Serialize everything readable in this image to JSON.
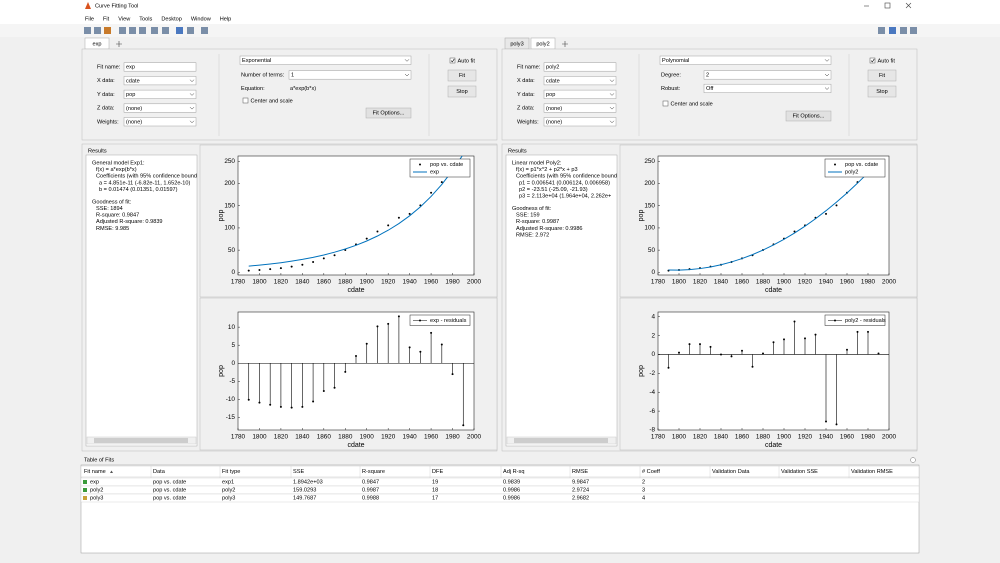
{
  "window": {
    "title": "Curve Fitting Tool",
    "menu": [
      "File",
      "Fit",
      "View",
      "Tools",
      "Desktop",
      "Window",
      "Help"
    ]
  },
  "left": {
    "tabs": [
      "exp"
    ],
    "fit_name_label": "Fit name:",
    "fit_name": "exp",
    "x_data_label": "X data:",
    "x_data": "cdate",
    "y_data_label": "Y data:",
    "y_data": "pop",
    "z_data_label": "Z data:",
    "z_data": "(none)",
    "weights_label": "Weights:",
    "weights": "(none)",
    "fit_type": "Exponential",
    "terms_label": "Number of terms:",
    "terms": "1",
    "equation_label": "Equation:",
    "equation": "a*exp(b*x)",
    "center_scale": "Center and scale",
    "fit_options": "Fit Options...",
    "auto_fit": "Auto fit",
    "fit": "Fit",
    "stop": "Stop",
    "results_title": "Results",
    "results": {
      "model": [
        "General model Exp1:",
        "f(x) = a*exp(b*x)",
        "Coefficients (with 95% confidence bound",
        "a =  4.851e-11  (-6.82e-11, 1.652e-10)",
        "b =    0.01474  (0.01351, 0.01597)"
      ],
      "goodness": [
        "Goodness of fit:",
        "SSE: 1894",
        "R-square: 0.9847",
        "Adjusted R-square: 0.9839",
        "RMSE: 9.985"
      ]
    }
  },
  "right": {
    "tabs": [
      "poly3",
      "poly2"
    ],
    "fit_name_label": "Fit name:",
    "fit_name": "poly2",
    "x_data_label": "X data:",
    "x_data": "cdate",
    "y_data_label": "Y data:",
    "y_data": "pop",
    "z_data_label": "Z data:",
    "z_data": "(none)",
    "weights_label": "Weights:",
    "weights": "(none)",
    "fit_type": "Polynomial",
    "degree_label": "Degree:",
    "degree": "2",
    "robust_label": "Robust:",
    "robust": "Off",
    "center_scale": "Center and scale",
    "fit_options": "Fit Options...",
    "auto_fit": "Auto fit",
    "fit": "Fit",
    "stop": "Stop",
    "results_title": "Results",
    "results": {
      "model": [
        "Linear model Poly2:",
        "f(x) = p1*x^2 + p2*x + p3",
        "Coefficients (with 95% confidence bound",
        "p1 =   0.006541  (0.006124, 0.006958)",
        "p2 =     -23.51  (-25.09, -21.93)",
        "p3 =  2.113e+04  (1.964e+04, 2.262e+"
      ],
      "goodness": [
        "Goodness of fit:",
        "SSE: 159",
        "R-square: 0.9987",
        "Adjusted R-square: 0.9986",
        "RMSE: 2.972"
      ]
    }
  },
  "chart_data": [
    {
      "type": "scatter",
      "xlabel": "cdate",
      "ylabel": "pop",
      "x": [
        1790,
        1800,
        1810,
        1820,
        1830,
        1840,
        1850,
        1860,
        1870,
        1880,
        1890,
        1900,
        1910,
        1920,
        1930,
        1940,
        1950,
        1960,
        1970,
        1980,
        1990
      ],
      "xlim": [
        1780,
        2000
      ],
      "xticks": [
        1780,
        1800,
        1820,
        1840,
        1860,
        1880,
        1900,
        1920,
        1940,
        1960,
        1980,
        2000
      ],
      "ylim": [
        -6,
        262
      ],
      "yticks": [
        0,
        50,
        100,
        150,
        200,
        250
      ],
      "legend": "northeast",
      "series": [
        {
          "name": "pop vs. cdate",
          "color": "#000000",
          "style": "markers",
          "values": [
            3.9,
            5.3,
            7.2,
            9.6,
            12.9,
            17.1,
            23.2,
            31.4,
            38.6,
            50.2,
            62.9,
            76,
            92,
            105.7,
            122.8,
            131.7,
            150.7,
            179.3,
            203.2,
            226.5,
            248.7
          ]
        },
        {
          "name": "exp",
          "color": "#0072bd",
          "style": "line",
          "values": [
            14.0,
            16.2,
            18.7,
            21.7,
            25.2,
            29.2,
            33.8,
            39.1,
            45.4,
            52.6,
            60.9,
            70.6,
            81.8,
            94.8,
            109.8,
            127.3,
            147.5,
            170.9,
            198.0,
            229.5,
            265.9
          ]
        }
      ]
    },
    {
      "type": "stem",
      "xlabel": "cdate",
      "ylabel": "pop",
      "x": [
        1790,
        1800,
        1810,
        1820,
        1830,
        1840,
        1850,
        1860,
        1870,
        1880,
        1890,
        1900,
        1910,
        1920,
        1930,
        1940,
        1950,
        1960,
        1970,
        1980,
        1990
      ],
      "xlim": [
        1780,
        2000
      ],
      "xticks": [
        1780,
        1800,
        1820,
        1840,
        1860,
        1880,
        1900,
        1920,
        1940,
        1960,
        1980,
        2000
      ],
      "ylim": [
        -18.5,
        14.2
      ],
      "yticks": [
        -15,
        -10,
        -5,
        0,
        5,
        10
      ],
      "legend": "northeast",
      "series": [
        {
          "name": "exp - residuals",
          "color": "#000000",
          "style": "stem",
          "values": [
            -10.1,
            -10.9,
            -11.5,
            -12.1,
            -12.3,
            -12.1,
            -10.6,
            -7.7,
            -6.8,
            -2.4,
            2.0,
            5.4,
            10.2,
            10.9,
            13.0,
            4.4,
            3.2,
            8.4,
            5.2,
            -3.0,
            -17.2
          ]
        }
      ]
    },
    {
      "type": "scatter",
      "xlabel": "cdate",
      "ylabel": "pop",
      "x": [
        1790,
        1800,
        1810,
        1820,
        1830,
        1840,
        1850,
        1860,
        1870,
        1880,
        1890,
        1900,
        1910,
        1920,
        1930,
        1940,
        1950,
        1960,
        1970,
        1980,
        1990
      ],
      "xlim": [
        1780,
        2000
      ],
      "xticks": [
        1780,
        1800,
        1820,
        1840,
        1860,
        1880,
        1900,
        1920,
        1940,
        1960,
        1980,
        2000
      ],
      "ylim": [
        -6,
        262
      ],
      "yticks": [
        0,
        50,
        100,
        150,
        200,
        250
      ],
      "legend": "northeast",
      "series": [
        {
          "name": "pop vs. cdate",
          "color": "#000000",
          "style": "markers",
          "values": [
            3.9,
            5.3,
            7.2,
            9.6,
            12.9,
            17.1,
            23.2,
            31.4,
            38.6,
            50.2,
            62.9,
            76,
            92,
            105.7,
            122.8,
            131.7,
            150.7,
            179.3,
            203.2,
            226.5,
            248.7
          ]
        },
        {
          "name": "poly2",
          "color": "#0072bd",
          "style": "line",
          "values": [
            5.3,
            5.1,
            6.1,
            8.5,
            12.1,
            17.1,
            23.4,
            31.0,
            39.9,
            50.1,
            61.6,
            74.4,
            88.5,
            104.0,
            120.7,
            138.8,
            158.1,
            178.8,
            200.8,
            224.1,
            248.6
          ]
        }
      ]
    },
    {
      "type": "stem",
      "xlabel": "cdate",
      "ylabel": "pop",
      "x": [
        1790,
        1800,
        1810,
        1820,
        1830,
        1840,
        1850,
        1860,
        1870,
        1880,
        1890,
        1900,
        1910,
        1920,
        1930,
        1940,
        1950,
        1960,
        1970,
        1980,
        1990
      ],
      "xlim": [
        1780,
        2000
      ],
      "xticks": [
        1780,
        1800,
        1820,
        1840,
        1860,
        1880,
        1900,
        1920,
        1940,
        1960,
        1980,
        2000
      ],
      "ylim": [
        -8,
        4.5
      ],
      "yticks": [
        -8,
        -6,
        -4,
        -2,
        0,
        2,
        4
      ],
      "legend": "northeast",
      "series": [
        {
          "name": "poly2 - residuals",
          "color": "#000000",
          "style": "stem",
          "values": [
            -1.4,
            0.2,
            1.1,
            1.1,
            0.8,
            0.0,
            -0.2,
            0.4,
            -1.3,
            0.1,
            1.3,
            1.6,
            3.5,
            1.7,
            2.1,
            -7.1,
            -7.4,
            0.5,
            2.4,
            2.4,
            0.1
          ]
        }
      ]
    }
  ],
  "table": {
    "title": "Table of Fits",
    "columns": [
      "Fit name",
      "Data",
      "Fit type",
      "SSE",
      "R-square",
      "DFE",
      "Adj R-sq",
      "RMSE",
      "# Coeff",
      "Validation Data",
      "Validation SSE",
      "Validation RMSE"
    ],
    "rows": [
      [
        "exp",
        "pop vs. cdate",
        "exp1",
        "1.8942e+03",
        "0.9847",
        "19",
        "0.9839",
        "9.9847",
        "2"
      ],
      [
        "poly2",
        "pop vs. cdate",
        "poly2",
        "159.0293",
        "0.9987",
        "18",
        "0.9986",
        "2.9724",
        "3"
      ],
      [
        "poly3",
        "pop vs. cdate",
        "poly3",
        "149.7687",
        "0.9988",
        "17",
        "0.9986",
        "2.9682",
        "4"
      ]
    ]
  }
}
